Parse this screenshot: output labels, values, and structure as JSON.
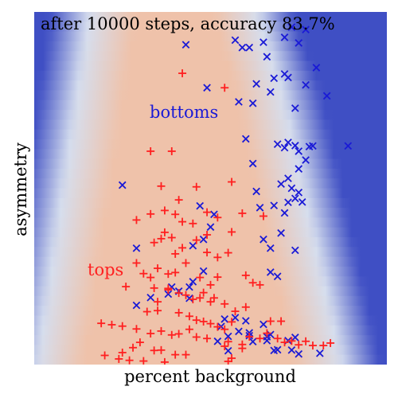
{
  "chart_data": {
    "type": "scatter",
    "title": "after 10000 steps, accuracy 83.7%",
    "xlabel": "percent background",
    "ylabel": "asymmetry",
    "grid": false,
    "axis_ticks": "none",
    "x_range": [
      0,
      1
    ],
    "y_range": [
      0,
      1
    ],
    "background": "decision-surface heatmap: blue = bottoms, red/peach = tops",
    "annotations": [
      {
        "text": "bottoms",
        "color": "#1a1ad6",
        "x": 0.44,
        "y": 0.71
      },
      {
        "text": "tops",
        "color": "#ff2020",
        "x": 0.2,
        "y": 0.27
      }
    ],
    "series": [
      {
        "name": "bottoms",
        "marker": "x",
        "color": "#1a1ad6",
        "points": [
          [
            0.43,
            0.907
          ],
          [
            0.57,
            0.92
          ],
          [
            0.59,
            0.899
          ],
          [
            0.61,
            0.899
          ],
          [
            0.65,
            0.914
          ],
          [
            0.71,
            0.928
          ],
          [
            0.73,
            0.957
          ],
          [
            0.75,
            0.912
          ],
          [
            0.77,
            0.95
          ],
          [
            0.66,
            0.873
          ],
          [
            0.71,
            0.824
          ],
          [
            0.72,
            0.814
          ],
          [
            0.8,
            0.842
          ],
          [
            0.77,
            0.793
          ],
          [
            0.68,
            0.812
          ],
          [
            0.63,
            0.796
          ],
          [
            0.67,
            0.773
          ],
          [
            0.58,
            0.745
          ],
          [
            0.62,
            0.741
          ],
          [
            0.49,
            0.785
          ],
          [
            0.74,
            0.727
          ],
          [
            0.83,
            0.762
          ],
          [
            0.6,
            0.64
          ],
          [
            0.69,
            0.625
          ],
          [
            0.71,
            0.615
          ],
          [
            0.72,
            0.63
          ],
          [
            0.74,
            0.621
          ],
          [
            0.75,
            0.605
          ],
          [
            0.78,
            0.618
          ],
          [
            0.79,
            0.62
          ],
          [
            0.89,
            0.62
          ],
          [
            0.77,
            0.58
          ],
          [
            0.75,
            0.555
          ],
          [
            0.72,
            0.528
          ],
          [
            0.7,
            0.512
          ],
          [
            0.73,
            0.5
          ],
          [
            0.75,
            0.488
          ],
          [
            0.74,
            0.471
          ],
          [
            0.62,
            0.57
          ],
          [
            0.63,
            0.491
          ],
          [
            0.76,
            0.461
          ],
          [
            0.68,
            0.451
          ],
          [
            0.72,
            0.46
          ],
          [
            0.71,
            0.43
          ],
          [
            0.25,
            0.509
          ],
          [
            0.47,
            0.45
          ],
          [
            0.51,
            0.426
          ],
          [
            0.5,
            0.39
          ],
          [
            0.64,
            0.445
          ],
          [
            0.48,
            0.355
          ],
          [
            0.45,
            0.337
          ],
          [
            0.7,
            0.373
          ],
          [
            0.65,
            0.355
          ],
          [
            0.67,
            0.33
          ],
          [
            0.74,
            0.324
          ],
          [
            0.29,
            0.33
          ],
          [
            0.48,
            0.265
          ],
          [
            0.45,
            0.235
          ],
          [
            0.44,
            0.22
          ],
          [
            0.41,
            0.208
          ],
          [
            0.44,
            0.188
          ],
          [
            0.39,
            0.22
          ],
          [
            0.38,
            0.2
          ],
          [
            0.33,
            0.19
          ],
          [
            0.29,
            0.168
          ],
          [
            0.67,
            0.262
          ],
          [
            0.69,
            0.25
          ],
          [
            0.57,
            0.133
          ],
          [
            0.6,
            0.124
          ],
          [
            0.54,
            0.129
          ],
          [
            0.65,
            0.114
          ],
          [
            0.61,
            0.09
          ],
          [
            0.55,
            0.08
          ],
          [
            0.66,
            0.079
          ],
          [
            0.72,
            0.068
          ],
          [
            0.74,
            0.077
          ],
          [
            0.62,
            0.065
          ],
          [
            0.52,
            0.066
          ],
          [
            0.55,
            0.039
          ],
          [
            0.69,
            0.042
          ],
          [
            0.73,
            0.041
          ],
          [
            0.68,
            0.04
          ],
          [
            0.61,
            0.082
          ],
          [
            0.67,
            0.085
          ],
          [
            0.81,
            0.032
          ],
          [
            0.75,
            0.03
          ],
          [
            0.66,
            0.068
          ],
          [
            0.53,
            0.108
          ],
          [
            0.58,
            0.094
          ]
        ]
      },
      {
        "name": "tops",
        "marker": "+",
        "color": "#ff2020",
        "points": [
          [
            0.42,
            0.826
          ],
          [
            0.54,
            0.785
          ],
          [
            0.33,
            0.605
          ],
          [
            0.39,
            0.605
          ],
          [
            0.36,
            0.506
          ],
          [
            0.46,
            0.504
          ],
          [
            0.56,
            0.518
          ],
          [
            0.41,
            0.467
          ],
          [
            0.33,
            0.427
          ],
          [
            0.49,
            0.432
          ],
          [
            0.29,
            0.41
          ],
          [
            0.37,
            0.437
          ],
          [
            0.4,
            0.426
          ],
          [
            0.45,
            0.4
          ],
          [
            0.52,
            0.417
          ],
          [
            0.59,
            0.429
          ],
          [
            0.65,
            0.421
          ],
          [
            0.56,
            0.376
          ],
          [
            0.49,
            0.368
          ],
          [
            0.42,
            0.405
          ],
          [
            0.37,
            0.375
          ],
          [
            0.36,
            0.357
          ],
          [
            0.39,
            0.36
          ],
          [
            0.34,
            0.346
          ],
          [
            0.4,
            0.314
          ],
          [
            0.42,
            0.331
          ],
          [
            0.46,
            0.353
          ],
          [
            0.49,
            0.318
          ],
          [
            0.52,
            0.304
          ],
          [
            0.55,
            0.317
          ],
          [
            0.29,
            0.288
          ],
          [
            0.31,
            0.258
          ],
          [
            0.33,
            0.247
          ],
          [
            0.35,
            0.273
          ],
          [
            0.38,
            0.257
          ],
          [
            0.4,
            0.261
          ],
          [
            0.43,
            0.288
          ],
          [
            0.47,
            0.247
          ],
          [
            0.5,
            0.226
          ],
          [
            0.52,
            0.248
          ],
          [
            0.6,
            0.253
          ],
          [
            0.62,
            0.232
          ],
          [
            0.64,
            0.226
          ],
          [
            0.26,
            0.221
          ],
          [
            0.34,
            0.217
          ],
          [
            0.38,
            0.212
          ],
          [
            0.41,
            0.203
          ],
          [
            0.43,
            0.197
          ],
          [
            0.45,
            0.185
          ],
          [
            0.47,
            0.189
          ],
          [
            0.48,
            0.204
          ],
          [
            0.5,
            0.178
          ],
          [
            0.51,
            0.189
          ],
          [
            0.54,
            0.172
          ],
          [
            0.57,
            0.151
          ],
          [
            0.6,
            0.163
          ],
          [
            0.67,
            0.123
          ],
          [
            0.7,
            0.123
          ],
          [
            0.19,
            0.117
          ],
          [
            0.22,
            0.113
          ],
          [
            0.25,
            0.109
          ],
          [
            0.29,
            0.101
          ],
          [
            0.33,
            0.088
          ],
          [
            0.36,
            0.095
          ],
          [
            0.39,
            0.084
          ],
          [
            0.41,
            0.087
          ],
          [
            0.44,
            0.1
          ],
          [
            0.46,
            0.078
          ],
          [
            0.49,
            0.074
          ],
          [
            0.55,
            0.065
          ],
          [
            0.59,
            0.057
          ],
          [
            0.61,
            0.079
          ],
          [
            0.64,
            0.074
          ],
          [
            0.66,
            0.089
          ],
          [
            0.69,
            0.074
          ],
          [
            0.71,
            0.063
          ],
          [
            0.73,
            0.067
          ],
          [
            0.75,
            0.056
          ],
          [
            0.77,
            0.066
          ],
          [
            0.79,
            0.054
          ],
          [
            0.82,
            0.054
          ],
          [
            0.84,
            0.061
          ],
          [
            0.35,
            0.153
          ],
          [
            0.28,
            0.048
          ],
          [
            0.3,
            0.063
          ],
          [
            0.25,
            0.034
          ],
          [
            0.34,
            0.04
          ],
          [
            0.36,
            0.041
          ],
          [
            0.4,
            0.028
          ],
          [
            0.43,
            0.028
          ],
          [
            0.59,
            0.046
          ],
          [
            0.54,
            0.052
          ],
          [
            0.2,
            0.026
          ],
          [
            0.24,
            0.016
          ],
          [
            0.27,
            0.012
          ],
          [
            0.31,
            0.01
          ],
          [
            0.37,
            0.007
          ],
          [
            0.55,
            0.009
          ],
          [
            0.56,
            0.018
          ],
          [
            0.32,
            0.15
          ],
          [
            0.35,
            0.178
          ],
          [
            0.38,
            0.216
          ],
          [
            0.41,
            0.147
          ],
          [
            0.44,
            0.137
          ],
          [
            0.46,
            0.126
          ],
          [
            0.48,
            0.122
          ],
          [
            0.5,
            0.116
          ],
          [
            0.52,
            0.107
          ],
          [
            0.54,
            0.1
          ],
          [
            0.56,
            0.121
          ]
        ]
      }
    ]
  }
}
